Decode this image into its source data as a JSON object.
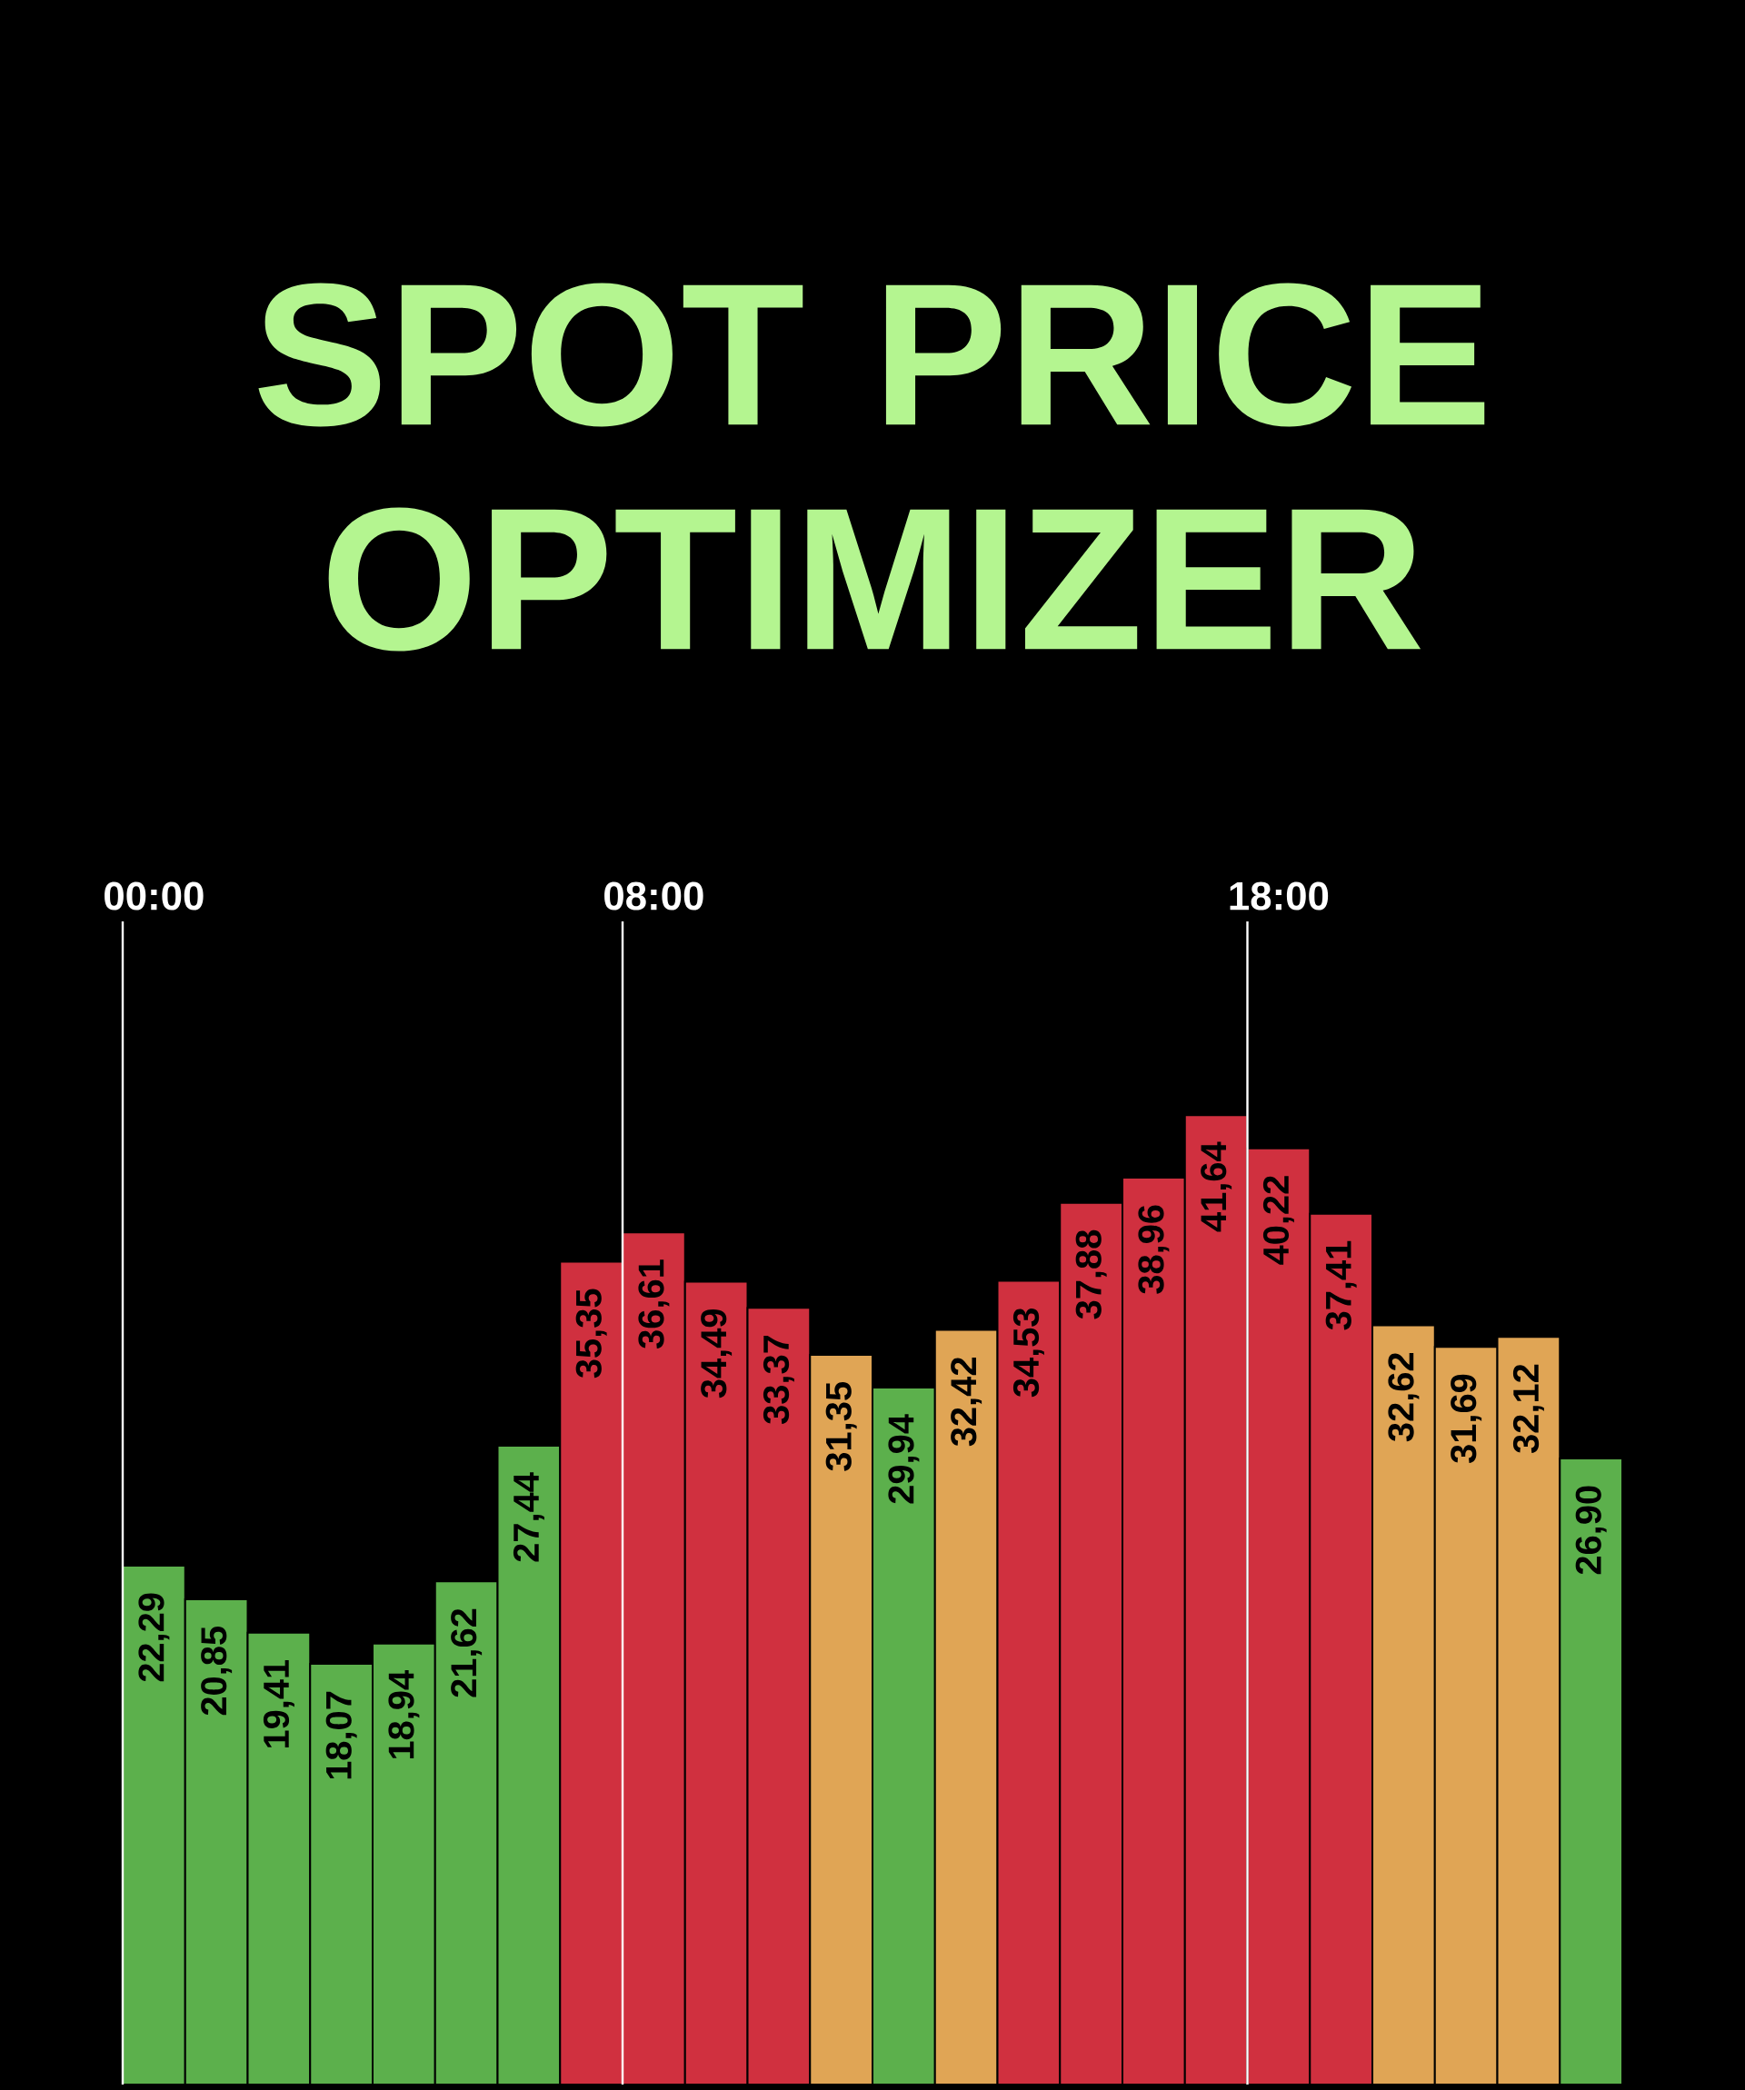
{
  "chart_data": {
    "type": "bar",
    "title": "SPOT PRICE OPTIMIZER",
    "categories": [
      "00:00",
      null,
      null,
      null,
      null,
      null,
      null,
      null,
      "08:00",
      null,
      null,
      null,
      null,
      null,
      null,
      null,
      null,
      null,
      "18:00",
      null,
      null,
      null,
      null,
      null
    ],
    "values": [
      22.29,
      20.85,
      19.41,
      18.07,
      18.94,
      21.62,
      27.44,
      35.35,
      36.61,
      34.49,
      33.37,
      31.35,
      29.94,
      32.42,
      34.53,
      37.88,
      38.96,
      41.64,
      40.22,
      37.41,
      32.62,
      31.69,
      32.12,
      26.9
    ],
    "value_labels": [
      "22,29",
      "20,85",
      "19,41",
      "18,07",
      "18,94",
      "21,62",
      "27,44",
      "35,35",
      "36,61",
      "34,49",
      "33,37",
      "31,35",
      "29,94",
      "32,42",
      "34,53",
      "37,88",
      "38,96",
      "41,64",
      "40,22",
      "37,41",
      "32,62",
      "31,69",
      "32,12",
      "26,90"
    ],
    "colors": [
      "#5cb04c",
      "#5cb04c",
      "#5cb04c",
      "#5cb04c",
      "#5cb04c",
      "#5cb04c",
      "#5cb04c",
      "#d0303f",
      "#d0303f",
      "#d0303f",
      "#d0303f",
      "#e0a555",
      "#5cb04c",
      "#e0a555",
      "#d0303f",
      "#d0303f",
      "#d0303f",
      "#d0303f",
      "#d0303f",
      "#d0303f",
      "#e0a555",
      "#e0a555",
      "#e0a555",
      "#5cb04c"
    ]
  }
}
